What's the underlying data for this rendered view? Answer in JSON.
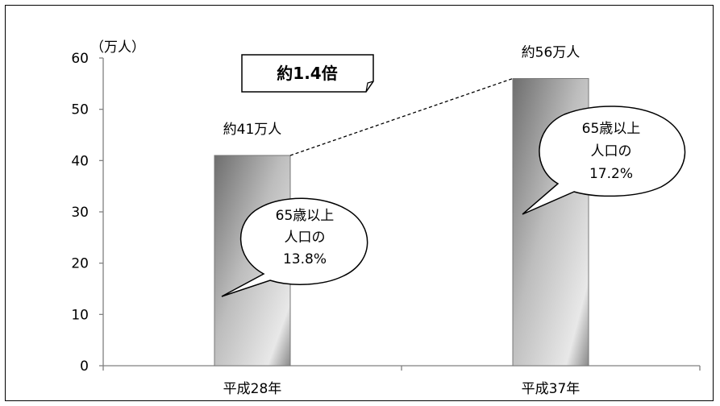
{
  "chart_data": {
    "type": "bar",
    "categories": [
      "平成28年",
      "平成37年"
    ],
    "values": [
      41,
      56
    ],
    "ylabel": "（万人）",
    "ylim": [
      0,
      60
    ],
    "yticks": [
      0,
      10,
      20,
      30,
      40,
      50,
      60
    ],
    "data_labels": [
      "約41万人",
      "約56万人"
    ],
    "callouts": [
      {
        "lines": [
          "65歳以上",
          "人口の",
          "13.8%"
        ]
      },
      {
        "lines": [
          "65歳以上",
          "人口の",
          "17.2%"
        ]
      }
    ],
    "ratio_label": "約1.4倍",
    "grid": false,
    "colors": {
      "bar_dark": "#7a7a7a",
      "bar_light": "#e6e6e6",
      "axis": "#808080"
    }
  }
}
